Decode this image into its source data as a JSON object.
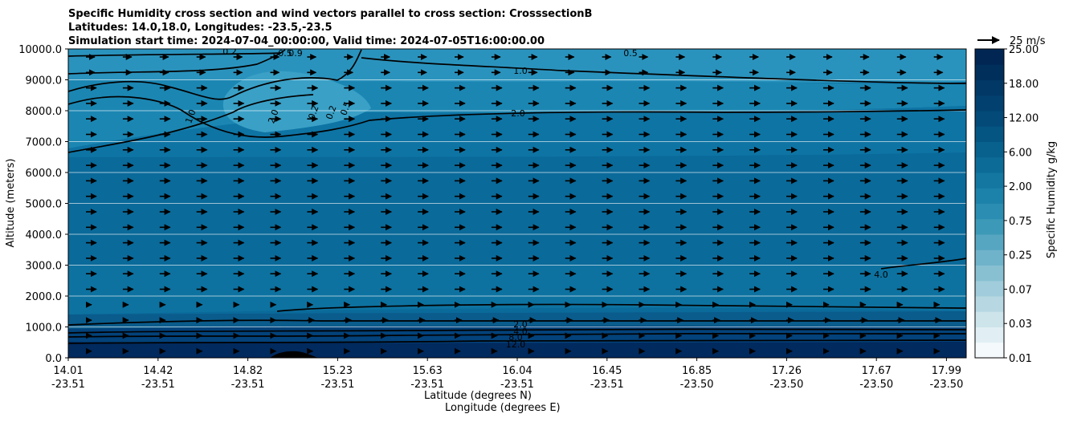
{
  "header": {
    "title_line1": "Specific Humidity cross section and wind vectors parallel to cross section: CrosssectionB",
    "title_line2": "Latitudes: 14.0,18.0, Longitudes: -23.5,-23.5",
    "title_line3": "Simulation start time: 2024-07-04_00:00:00, Valid time: 2024-07-05T16:00:00.00"
  },
  "chart_data": {
    "type": "heatmap",
    "title": "Specific Humidity cross section and wind vectors parallel to cross section: CrosssectionB",
    "xlabel_line1": "Latitude (degrees N)",
    "xlabel_line2": "Longitude (degrees E)",
    "ylabel": "Altitude (meters)",
    "ylim": [
      0,
      10000
    ],
    "y_ticks": [
      0,
      1000,
      2000,
      3000,
      4000,
      5000,
      6000,
      7000,
      8000,
      9000,
      10000
    ],
    "y_tick_labels": [
      "0.0",
      "1000.0",
      "2000.0",
      "3000.0",
      "4000.0",
      "5000.0",
      "6000.0",
      "7000.0",
      "8000.0",
      "9000.0",
      "10000.0"
    ],
    "x_tick_latitudes": [
      "14.01",
      "14.42",
      "14.82",
      "15.23",
      "15.63",
      "16.04",
      "16.45",
      "16.85",
      "17.26",
      "17.67",
      "17.99"
    ],
    "x_tick_longitudes": [
      "-23.51",
      "-23.51",
      "-23.51",
      "-23.51",
      "-23.51",
      "-23.51",
      "-23.51",
      "-23.50",
      "-23.50",
      "-23.50",
      "-23.50"
    ],
    "x_tick_positions": [
      0,
      1,
      2,
      3,
      4,
      5,
      6,
      7,
      8,
      9,
      9.78
    ],
    "colorbar": {
      "label": "Specific Humidity g/kg",
      "tick_labels": [
        "0.01",
        "0.03",
        "0.07",
        "0.25",
        "0.75",
        "2.00",
        "6.00",
        "12.00",
        "18.00",
        "25.00"
      ],
      "level_colors": [
        "#f4fafc",
        "#e1eff4",
        "#cde4eb",
        "#b7d8e3",
        "#a0ccdb",
        "#88c0d2",
        "#6fb3ca",
        "#56a6c1",
        "#3d99b8",
        "#2a8db1",
        "#1d82aa",
        "#1477a2",
        "#0d6b98",
        "#08608d",
        "#055583",
        "#034a79",
        "#02416f",
        "#013865",
        "#012f5c",
        "#012654"
      ]
    },
    "contour_labels": [
      "0.2",
      "0.5",
      "1.0",
      "2.0",
      "1.0",
      "2.0",
      "0.2",
      "0.5",
      "0.2",
      "2.0",
      "4.0",
      "8.0",
      "12.0",
      "4.0",
      "0.9",
      "0.5"
    ],
    "wind_reference_label": "25 m/s",
    "wind_direction": "eastward (left to right)"
  }
}
